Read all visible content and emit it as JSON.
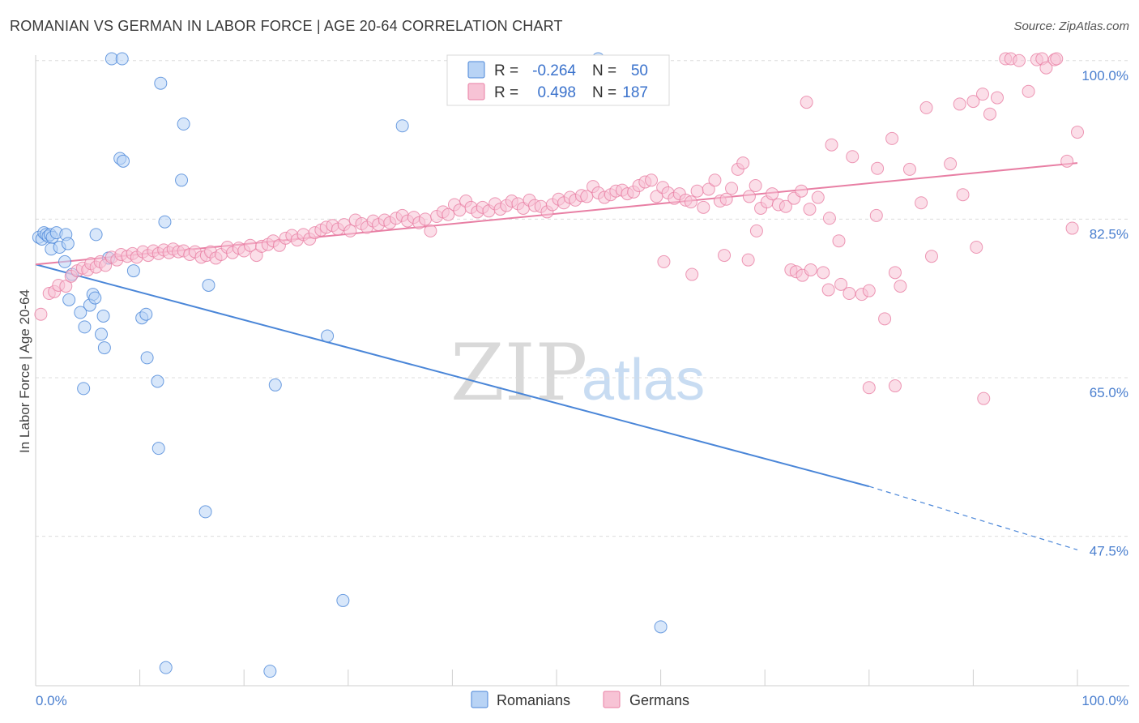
{
  "title": "ROMANIAN VS GERMAN IN LABOR FORCE | AGE 20-64 CORRELATION CHART",
  "source": "Source: ZipAtlas.com",
  "watermark": {
    "zip": "ZIP",
    "atlas": "atlas"
  },
  "colors": {
    "romanians": "#4a86d8",
    "romanians_fill": "#b8d3f5",
    "germans": "#e87fa4",
    "germans_fill": "#f7c3d5",
    "tick": "#4a7fcf"
  },
  "legend_top": {
    "r_label": "R =",
    "n_label": "N =",
    "rows": [
      {
        "series": "Romanians",
        "r": "-0.264",
        "n": "50"
      },
      {
        "series": "Germans",
        "r": "0.498",
        "n": "187"
      }
    ]
  },
  "legend_bottom": [
    "Romanians",
    "Germans"
  ],
  "chart_data": {
    "type": "scatter",
    "title": "ROMANIAN VS GERMAN IN LABOR FORCE | AGE 20-64 CORRELATION CHART",
    "xlabel": "",
    "ylabel": "In Labor Force | Age 20-64",
    "xlim": [
      0,
      100
    ],
    "ylim": [
      31,
      101.5
    ],
    "x_tick_labels": [
      "0.0%",
      "100.0%"
    ],
    "y_ticks": [
      47.5,
      65.0,
      82.5,
      100.0
    ],
    "y_tick_labels": [
      "47.5%",
      "65.0%",
      "82.5%",
      "100.0%"
    ],
    "grid": "horizontal dashed",
    "legend_position": "top-center",
    "series": [
      {
        "name": "Romanians",
        "trend": {
          "x0": 0,
          "y0": 77.5,
          "x1": 80,
          "y1": 53.0,
          "dashed_to_x": 100,
          "dashed_to_y": 46.0
        },
        "points": [
          [
            0.3,
            80.5
          ],
          [
            0.6,
            80.3
          ],
          [
            0.8,
            81.0
          ],
          [
            1.0,
            80.8
          ],
          [
            1.2,
            80.6
          ],
          [
            1.4,
            80.8
          ],
          [
            1.6,
            80.5
          ],
          [
            1.5,
            79.2
          ],
          [
            2.0,
            81.0
          ],
          [
            2.3,
            79.4
          ],
          [
            2.9,
            80.8
          ],
          [
            3.1,
            79.8
          ],
          [
            5.8,
            80.8
          ],
          [
            2.8,
            77.8
          ],
          [
            3.5,
            76.4
          ],
          [
            3.2,
            73.6
          ],
          [
            5.5,
            74.2
          ],
          [
            5.2,
            73.0
          ],
          [
            5.7,
            73.8
          ],
          [
            4.3,
            72.2
          ],
          [
            4.7,
            70.6
          ],
          [
            6.5,
            71.8
          ],
          [
            6.3,
            69.8
          ],
          [
            6.6,
            68.3
          ],
          [
            7.0,
            78.2
          ],
          [
            9.4,
            76.8
          ],
          [
            10.2,
            71.6
          ],
          [
            10.6,
            72.0
          ],
          [
            10.7,
            67.2
          ],
          [
            7.3,
            100.2
          ],
          [
            8.3,
            100.2
          ],
          [
            12.0,
            97.5
          ],
          [
            8.1,
            89.2
          ],
          [
            8.4,
            88.9
          ],
          [
            14.2,
            93.0
          ],
          [
            14.0,
            86.8
          ],
          [
            12.4,
            82.2
          ],
          [
            16.6,
            75.2
          ],
          [
            11.7,
            64.6
          ],
          [
            4.6,
            63.8
          ],
          [
            11.8,
            57.2
          ],
          [
            16.3,
            50.2
          ],
          [
            23.0,
            64.2
          ],
          [
            28.0,
            69.6
          ],
          [
            35.2,
            92.8
          ],
          [
            29.5,
            40.4
          ],
          [
            60.0,
            37.5
          ],
          [
            12.5,
            33.0
          ],
          [
            22.5,
            32.6
          ],
          [
            54.0,
            100.2
          ]
        ]
      },
      {
        "name": "Germans",
        "trend": {
          "x0": 0,
          "y0": 77.5,
          "x1": 100,
          "y1": 88.7
        },
        "points": [
          [
            0.5,
            72.0
          ],
          [
            1.3,
            74.3
          ],
          [
            1.8,
            74.5
          ],
          [
            2.2,
            75.2
          ],
          [
            2.9,
            75.1
          ],
          [
            3.4,
            76.2
          ],
          [
            4.0,
            76.8
          ],
          [
            4.5,
            77.1
          ],
          [
            5.0,
            76.9
          ],
          [
            5.3,
            77.6
          ],
          [
            5.8,
            77.2
          ],
          [
            6.2,
            77.8
          ],
          [
            6.7,
            77.4
          ],
          [
            7.3,
            78.3
          ],
          [
            7.8,
            78.0
          ],
          [
            8.2,
            78.6
          ],
          [
            8.8,
            78.4
          ],
          [
            9.3,
            78.7
          ],
          [
            9.7,
            78.3
          ],
          [
            10.3,
            78.9
          ],
          [
            10.8,
            78.5
          ],
          [
            11.3,
            79.0
          ],
          [
            11.8,
            78.7
          ],
          [
            12.3,
            79.1
          ],
          [
            12.8,
            78.8
          ],
          [
            13.2,
            79.2
          ],
          [
            13.7,
            78.9
          ],
          [
            14.2,
            79.0
          ],
          [
            14.8,
            78.6
          ],
          [
            15.3,
            78.9
          ],
          [
            15.9,
            78.3
          ],
          [
            16.4,
            78.5
          ],
          [
            16.8,
            78.9
          ],
          [
            17.3,
            78.2
          ],
          [
            17.8,
            78.6
          ],
          [
            18.4,
            79.4
          ],
          [
            18.9,
            78.8
          ],
          [
            19.5,
            79.3
          ],
          [
            20.0,
            79.0
          ],
          [
            20.6,
            79.6
          ],
          [
            21.2,
            78.5
          ],
          [
            21.7,
            79.5
          ],
          [
            22.3,
            79.7
          ],
          [
            22.8,
            80.1
          ],
          [
            23.4,
            79.6
          ],
          [
            24.0,
            80.4
          ],
          [
            24.6,
            80.7
          ],
          [
            25.1,
            80.2
          ],
          [
            25.7,
            80.8
          ],
          [
            26.3,
            80.3
          ],
          [
            26.8,
            81.0
          ],
          [
            27.4,
            81.3
          ],
          [
            27.9,
            81.6
          ],
          [
            28.5,
            81.8
          ],
          [
            29.0,
            81.4
          ],
          [
            29.6,
            81.9
          ],
          [
            30.2,
            81.2
          ],
          [
            30.7,
            82.4
          ],
          [
            31.3,
            82.0
          ],
          [
            31.8,
            81.6
          ],
          [
            32.4,
            82.3
          ],
          [
            32.9,
            81.9
          ],
          [
            33.5,
            82.4
          ],
          [
            34.0,
            82.1
          ],
          [
            34.6,
            82.6
          ],
          [
            35.2,
            82.9
          ],
          [
            35.7,
            82.3
          ],
          [
            36.3,
            82.7
          ],
          [
            36.8,
            82.1
          ],
          [
            37.4,
            82.5
          ],
          [
            37.9,
            81.2
          ],
          [
            38.5,
            82.8
          ],
          [
            39.1,
            83.3
          ],
          [
            39.6,
            83.0
          ],
          [
            40.2,
            84.1
          ],
          [
            40.7,
            83.5
          ],
          [
            41.3,
            84.5
          ],
          [
            41.8,
            83.8
          ],
          [
            42.4,
            83.3
          ],
          [
            42.9,
            83.8
          ],
          [
            43.5,
            83.4
          ],
          [
            44.1,
            84.2
          ],
          [
            44.6,
            83.6
          ],
          [
            45.2,
            84.0
          ],
          [
            45.7,
            84.5
          ],
          [
            46.3,
            84.2
          ],
          [
            46.8,
            83.7
          ],
          [
            47.4,
            84.6
          ],
          [
            47.9,
            84.0
          ],
          [
            48.5,
            83.9
          ],
          [
            49.1,
            83.3
          ],
          [
            49.6,
            84.1
          ],
          [
            50.2,
            84.7
          ],
          [
            50.7,
            84.3
          ],
          [
            51.3,
            84.9
          ],
          [
            51.8,
            84.6
          ],
          [
            52.4,
            85.1
          ],
          [
            52.9,
            85.0
          ],
          [
            53.5,
            86.1
          ],
          [
            54.0,
            85.4
          ],
          [
            54.6,
            84.9
          ],
          [
            55.2,
            85.2
          ],
          [
            55.7,
            85.6
          ],
          [
            56.3,
            85.7
          ],
          [
            56.8,
            85.3
          ],
          [
            57.4,
            85.5
          ],
          [
            57.9,
            86.2
          ],
          [
            58.5,
            86.6
          ],
          [
            59.1,
            86.8
          ],
          [
            59.6,
            85.0
          ],
          [
            60.2,
            86.0
          ],
          [
            60.7,
            85.4
          ],
          [
            61.3,
            84.8
          ],
          [
            61.8,
            85.3
          ],
          [
            62.4,
            84.6
          ],
          [
            62.9,
            84.4
          ],
          [
            63.5,
            85.6
          ],
          [
            64.1,
            83.8
          ],
          [
            64.6,
            85.8
          ],
          [
            65.2,
            86.8
          ],
          [
            65.7,
            84.5
          ],
          [
            66.3,
            84.7
          ],
          [
            66.8,
            85.9
          ],
          [
            67.4,
            88.0
          ],
          [
            67.9,
            88.7
          ],
          [
            68.5,
            85.0
          ],
          [
            69.1,
            86.2
          ],
          [
            69.6,
            83.7
          ],
          [
            70.2,
            84.4
          ],
          [
            70.7,
            85.3
          ],
          [
            71.3,
            84.1
          ],
          [
            72.0,
            83.9
          ],
          [
            72.8,
            84.8
          ],
          [
            73.5,
            85.6
          ],
          [
            74.3,
            83.6
          ],
          [
            75.1,
            84.9
          ],
          [
            69.2,
            81.2
          ],
          [
            68.4,
            78.0
          ],
          [
            66.1,
            78.5
          ],
          [
            60.3,
            77.8
          ],
          [
            63.0,
            76.4
          ],
          [
            72.5,
            76.9
          ],
          [
            73.0,
            76.7
          ],
          [
            73.6,
            76.3
          ],
          [
            74.4,
            76.9
          ],
          [
            75.6,
            76.6
          ],
          [
            76.1,
            74.7
          ],
          [
            77.3,
            75.3
          ],
          [
            78.1,
            74.3
          ],
          [
            79.3,
            74.2
          ],
          [
            80.0,
            74.6
          ],
          [
            81.5,
            71.5
          ],
          [
            82.5,
            76.6
          ],
          [
            83.0,
            75.1
          ],
          [
            86.0,
            78.4
          ],
          [
            89.0,
            85.2
          ],
          [
            76.2,
            82.6
          ],
          [
            77.1,
            80.1
          ],
          [
            80.7,
            82.9
          ],
          [
            85.0,
            84.3
          ],
          [
            90.3,
            79.4
          ],
          [
            74.0,
            95.4
          ],
          [
            76.4,
            90.7
          ],
          [
            78.4,
            89.4
          ],
          [
            80.8,
            88.1
          ],
          [
            82.2,
            91.4
          ],
          [
            83.9,
            88.0
          ],
          [
            85.5,
            94.8
          ],
          [
            87.8,
            88.6
          ],
          [
            88.7,
            95.2
          ],
          [
            90.0,
            95.5
          ],
          [
            90.9,
            96.3
          ],
          [
            91.6,
            94.1
          ],
          [
            92.3,
            95.9
          ],
          [
            93.1,
            100.2
          ],
          [
            93.6,
            100.2
          ],
          [
            94.4,
            100.0
          ],
          [
            95.3,
            96.6
          ],
          [
            96.1,
            100.1
          ],
          [
            96.6,
            100.2
          ],
          [
            97.0,
            99.2
          ],
          [
            97.8,
            100.1
          ],
          [
            98.0,
            100.2
          ],
          [
            99.0,
            88.9
          ],
          [
            99.5,
            81.5
          ],
          [
            100.0,
            92.1
          ],
          [
            80.0,
            63.9
          ],
          [
            82.5,
            64.1
          ],
          [
            91.0,
            62.7
          ]
        ]
      }
    ]
  }
}
